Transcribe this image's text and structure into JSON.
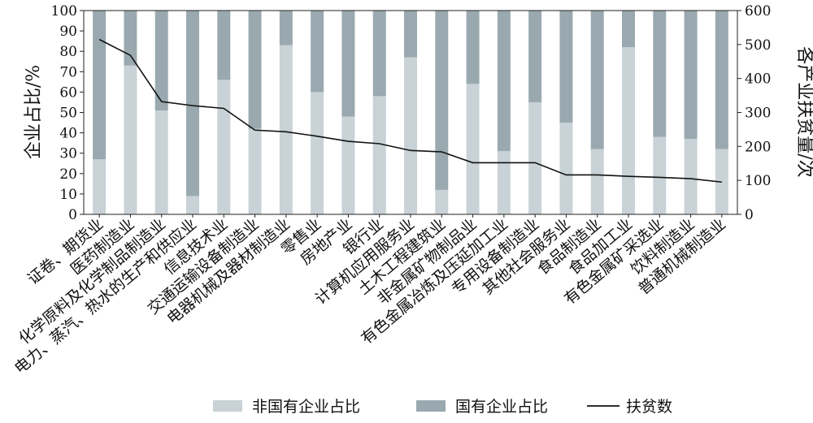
{
  "chart_data": {
    "type": "bar",
    "stacked": true,
    "categories": [
      "证卷、期货业",
      "医药制造业",
      "化学原料及化学制品制造业",
      "电力、蒸汽、热水的生产和供应业",
      "信息技术业",
      "交通运输设备制造业",
      "电器机械及器材制造业",
      "零售业",
      "房地产业",
      "银行业",
      "计算机应用服务业",
      "土木工程建筑业",
      "非金属矿物制品业",
      "有色金属冶炼及压延加工业",
      "专用设备制造业",
      "其他社会服务业",
      "食品制造业",
      "食品加工业",
      "有色金属矿采选业",
      "饮料制造业",
      "普通机械制造业"
    ],
    "series": [
      {
        "name": "非国有企业占比",
        "axis": "left",
        "color": "#c9d2d6",
        "values": [
          27,
          73,
          51,
          9,
          66,
          42,
          83,
          60,
          48,
          58,
          77,
          12,
          64,
          31,
          55,
          45,
          32,
          82,
          38,
          37,
          32
        ]
      },
      {
        "name": "国有企业占比",
        "axis": "left",
        "color": "#9aa9af",
        "values": [
          73,
          27,
          49,
          91,
          34,
          58,
          17,
          40,
          52,
          42,
          23,
          88,
          36,
          69,
          45,
          55,
          68,
          18,
          62,
          63,
          68
        ]
      },
      {
        "name": "扶贫数",
        "type": "line",
        "axis": "right",
        "color": "#111111",
        "values": [
          515,
          468,
          332,
          320,
          312,
          248,
          243,
          230,
          215,
          208,
          188,
          184,
          152,
          152,
          152,
          116,
          116,
          112,
          109,
          105,
          95
        ]
      }
    ],
    "ylabel": "企业占比/%",
    "ylabel_right": "各产业扶贫量/次",
    "ylim": [
      0,
      100
    ],
    "ylim_right": [
      0,
      600
    ],
    "yticks": [
      "0",
      "10",
      "20",
      "30",
      "40",
      "50",
      "60",
      "70",
      "80",
      "90",
      "100"
    ],
    "yticks_right": [
      "0",
      "100",
      "200",
      "300",
      "400",
      "500",
      "600"
    ],
    "legend_position": "bottom",
    "grid": false
  }
}
